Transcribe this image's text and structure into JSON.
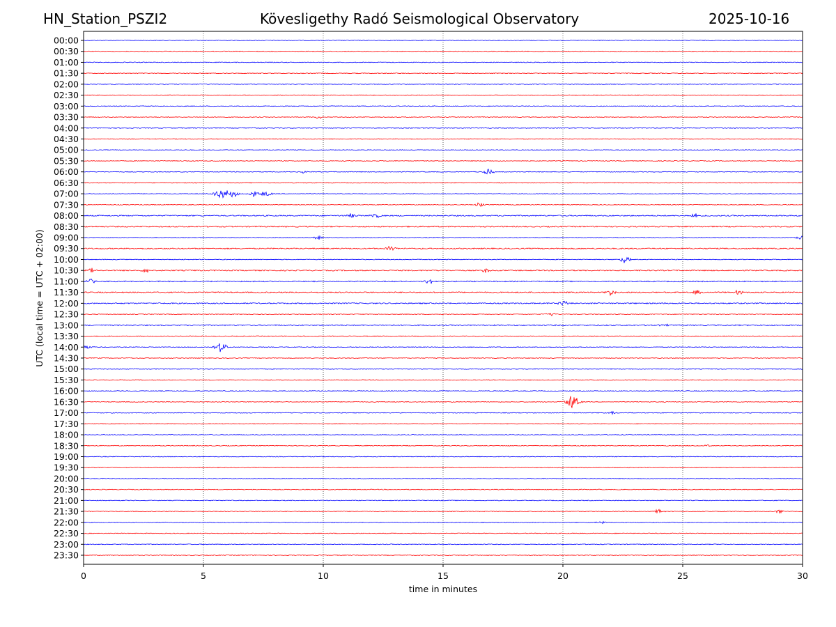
{
  "header": {
    "station": "HN_Station_PSZI2",
    "title": "Kövesligethy Radó Seismological Observatory",
    "date": "2025-10-16"
  },
  "chart_data": {
    "type": "line",
    "title": "Kövesligethy Radó Seismological Observatory",
    "xlabel": "time in minutes",
    "ylabel": "UTC (local time = UTC + 02:00)",
    "xlim": [
      0,
      30
    ],
    "xticks": [
      "0",
      "5",
      "10",
      "15",
      "20",
      "25",
      "30"
    ],
    "grid": "vertical dotted",
    "row_labels": [
      "00:00",
      "00:30",
      "01:00",
      "01:30",
      "02:00",
      "02:30",
      "03:00",
      "03:30",
      "04:00",
      "04:30",
      "05:00",
      "05:30",
      "06:00",
      "06:30",
      "07:00",
      "07:30",
      "08:00",
      "08:30",
      "09:00",
      "09:30",
      "10:00",
      "10:30",
      "11:00",
      "11:30",
      "12:00",
      "12:30",
      "13:00",
      "13:30",
      "14:00",
      "14:30",
      "15:00",
      "15:30",
      "16:00",
      "16:30",
      "17:00",
      "17:30",
      "18:00",
      "18:30",
      "19:00",
      "19:30",
      "20:00",
      "20:30",
      "21:00",
      "21:30",
      "22:00",
      "22:30",
      "23:00",
      "23:30"
    ],
    "colors": [
      "#0000ff",
      "#ff0000"
    ],
    "events": [
      {
        "row": "03:30",
        "minute": 9.8,
        "amplitude": 2
      },
      {
        "row": "06:00",
        "minute": 9.2,
        "amplitude": 2
      },
      {
        "row": "06:00",
        "minute": 16.9,
        "amplitude": 4
      },
      {
        "row": "07:00",
        "minute": 5.6,
        "amplitude": 6
      },
      {
        "row": "07:00",
        "minute": 6.0,
        "amplitude": 7
      },
      {
        "row": "07:00",
        "minute": 6.3,
        "amplitude": 4
      },
      {
        "row": "07:00",
        "minute": 7.1,
        "amplitude": 4
      },
      {
        "row": "07:00",
        "minute": 7.6,
        "amplitude": 5
      },
      {
        "row": "07:30",
        "minute": 16.5,
        "amplitude": 3
      },
      {
        "row": "08:00",
        "minute": 11.2,
        "amplitude": 3
      },
      {
        "row": "08:00",
        "minute": 12.2,
        "amplitude": 4
      },
      {
        "row": "08:00",
        "minute": 25.5,
        "amplitude": 3
      },
      {
        "row": "09:00",
        "minute": 9.8,
        "amplitude": 3
      },
      {
        "row": "09:00",
        "minute": 29.9,
        "amplitude": 3
      },
      {
        "row": "09:30",
        "minute": 12.8,
        "amplitude": 3
      },
      {
        "row": "10:00",
        "minute": 22.6,
        "amplitude": 5
      },
      {
        "row": "10:30",
        "minute": 0.3,
        "amplitude": 3
      },
      {
        "row": "10:30",
        "minute": 2.6,
        "amplitude": 3
      },
      {
        "row": "10:30",
        "minute": 16.8,
        "amplitude": 3
      },
      {
        "row": "11:00",
        "minute": 0.3,
        "amplitude": 3
      },
      {
        "row": "11:00",
        "minute": 14.4,
        "amplitude": 4
      },
      {
        "row": "11:30",
        "minute": 22.0,
        "amplitude": 4
      },
      {
        "row": "11:30",
        "minute": 25.6,
        "amplitude": 3
      },
      {
        "row": "11:30",
        "minute": 27.3,
        "amplitude": 3
      },
      {
        "row": "12:00",
        "minute": 20.0,
        "amplitude": 4
      },
      {
        "row": "12:30",
        "minute": 19.5,
        "amplitude": 3
      },
      {
        "row": "13:00",
        "minute": 24.2,
        "amplitude": 2
      },
      {
        "row": "14:00",
        "minute": 0.1,
        "amplitude": 3
      },
      {
        "row": "14:00",
        "minute": 5.7,
        "amplitude": 8
      },
      {
        "row": "16:30",
        "minute": 20.4,
        "amplitude": 10
      },
      {
        "row": "17:00",
        "minute": 22.1,
        "amplitude": 2
      },
      {
        "row": "18:30",
        "minute": 26.0,
        "amplitude": 2
      },
      {
        "row": "21:30",
        "minute": 24.0,
        "amplitude": 3
      },
      {
        "row": "21:30",
        "minute": 29.0,
        "amplitude": 3
      },
      {
        "row": "22:00",
        "minute": 21.6,
        "amplitude": 2
      }
    ]
  }
}
